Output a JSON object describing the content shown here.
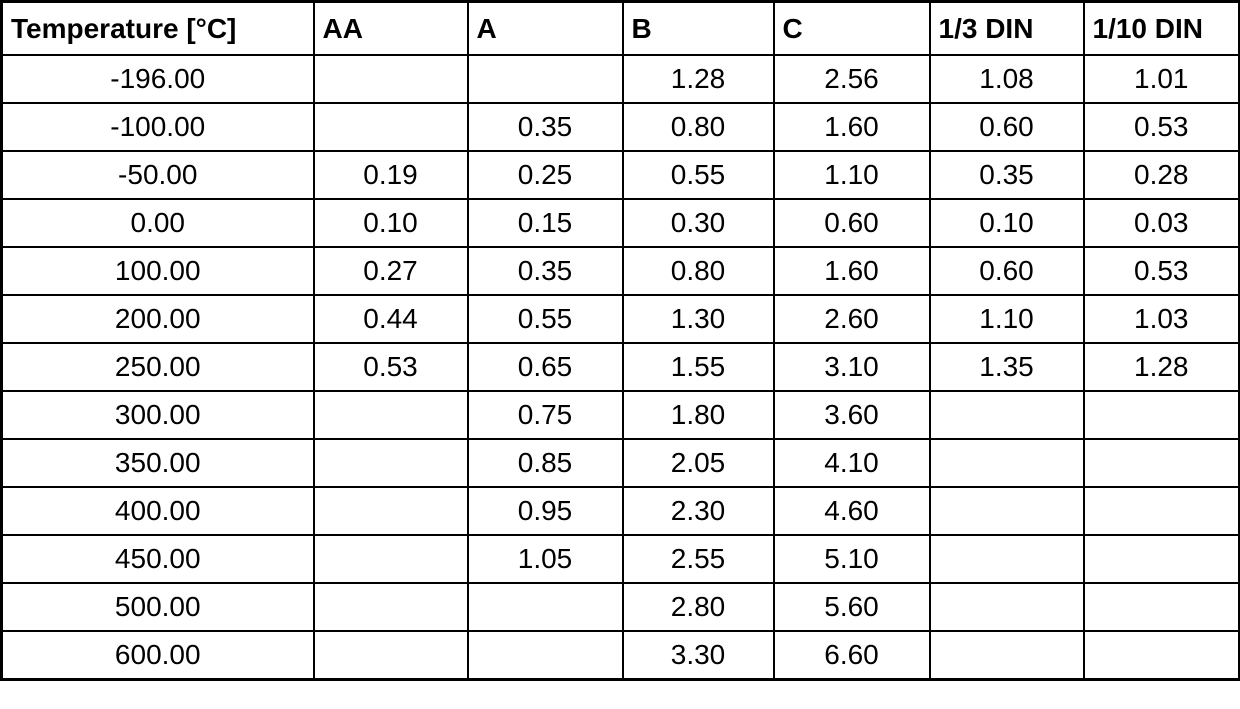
{
  "chart_data": {
    "type": "table",
    "title": "",
    "columns": [
      "Temperature [°C]",
      "AA",
      "A",
      "B",
      "C",
      "1/3 DIN",
      "1/10 DIN"
    ],
    "rows": [
      [
        "-196.00",
        "",
        "",
        "1.28",
        "2.56",
        "1.08",
        "1.01"
      ],
      [
        "-100.00",
        "",
        "0.35",
        "0.80",
        "1.60",
        "0.60",
        "0.53"
      ],
      [
        "-50.00",
        "0.19",
        "0.25",
        "0.55",
        "1.10",
        "0.35",
        "0.28"
      ],
      [
        "0.00",
        "0.10",
        "0.15",
        "0.30",
        "0.60",
        "0.10",
        "0.03"
      ],
      [
        "100.00",
        "0.27",
        "0.35",
        "0.80",
        "1.60",
        "0.60",
        "0.53"
      ],
      [
        "200.00",
        "0.44",
        "0.55",
        "1.30",
        "2.60",
        "1.10",
        "1.03"
      ],
      [
        "250.00",
        "0.53",
        "0.65",
        "1.55",
        "3.10",
        "1.35",
        "1.28"
      ],
      [
        "300.00",
        "",
        "0.75",
        "1.80",
        "3.60",
        "",
        ""
      ],
      [
        "350.00",
        "",
        "0.85",
        "2.05",
        "4.10",
        "",
        ""
      ],
      [
        "400.00",
        "",
        "0.95",
        "2.30",
        "4.60",
        "",
        ""
      ],
      [
        "450.00",
        "",
        "1.05",
        "2.55",
        "5.10",
        "",
        ""
      ],
      [
        "500.00",
        "",
        "",
        "2.80",
        "5.60",
        "",
        ""
      ],
      [
        "600.00",
        "",
        "",
        "3.30",
        "6.60",
        "",
        ""
      ]
    ],
    "layout": {
      "grid": true,
      "header_bold": true,
      "header_align": "left",
      "cell_align": "center"
    }
  },
  "colors": {
    "border": "#000000",
    "text": "#000000",
    "background": "#ffffff"
  }
}
